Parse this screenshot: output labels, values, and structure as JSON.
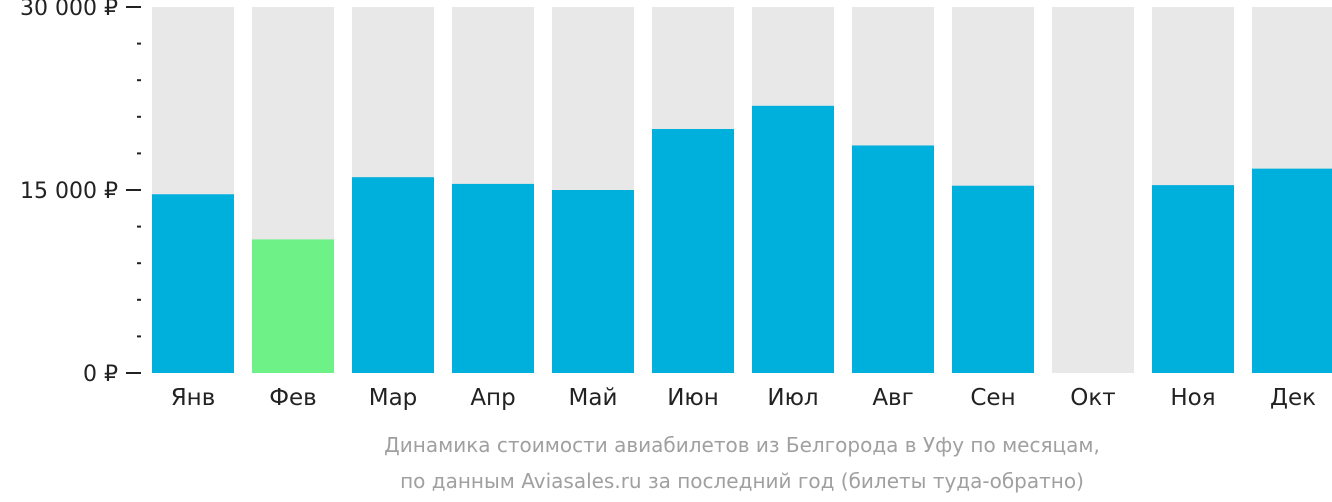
{
  "chart_data": {
    "type": "bar",
    "categories": [
      "Янв",
      "Фев",
      "Мар",
      "Апр",
      "Май",
      "Июн",
      "Июл",
      "Авг",
      "Сен",
      "Окт",
      "Ноя",
      "Дек"
    ],
    "values": [
      14650,
      10950,
      16050,
      15500,
      15000,
      20000,
      21900,
      18650,
      15350,
      null,
      15400,
      16750
    ],
    "ylim": [
      0,
      30000
    ],
    "yticks": [
      {
        "value": 0,
        "label": "0 ₽"
      },
      {
        "value": 15000,
        "label": "15 000 ₽"
      },
      {
        "value": 30000,
        "label": "30 000 ₽"
      }
    ],
    "minor_tick_step": 3000,
    "highlight_index": 1,
    "grid": false,
    "title": "",
    "xlabel": "",
    "ylabel": "",
    "caption_lines": [
      "Динамика стоимости авиабилетов из Белгорода в Уфу по месяцам,",
      "по данным Aviasales.ru за последний год (билеты туда-обратно)"
    ],
    "colors": {
      "bar": "#00b0dc",
      "highlight": "#6ef288",
      "track": "#e8e8e8",
      "axis": "#222222",
      "text": "#222222",
      "caption": "#a0a0a0"
    }
  }
}
